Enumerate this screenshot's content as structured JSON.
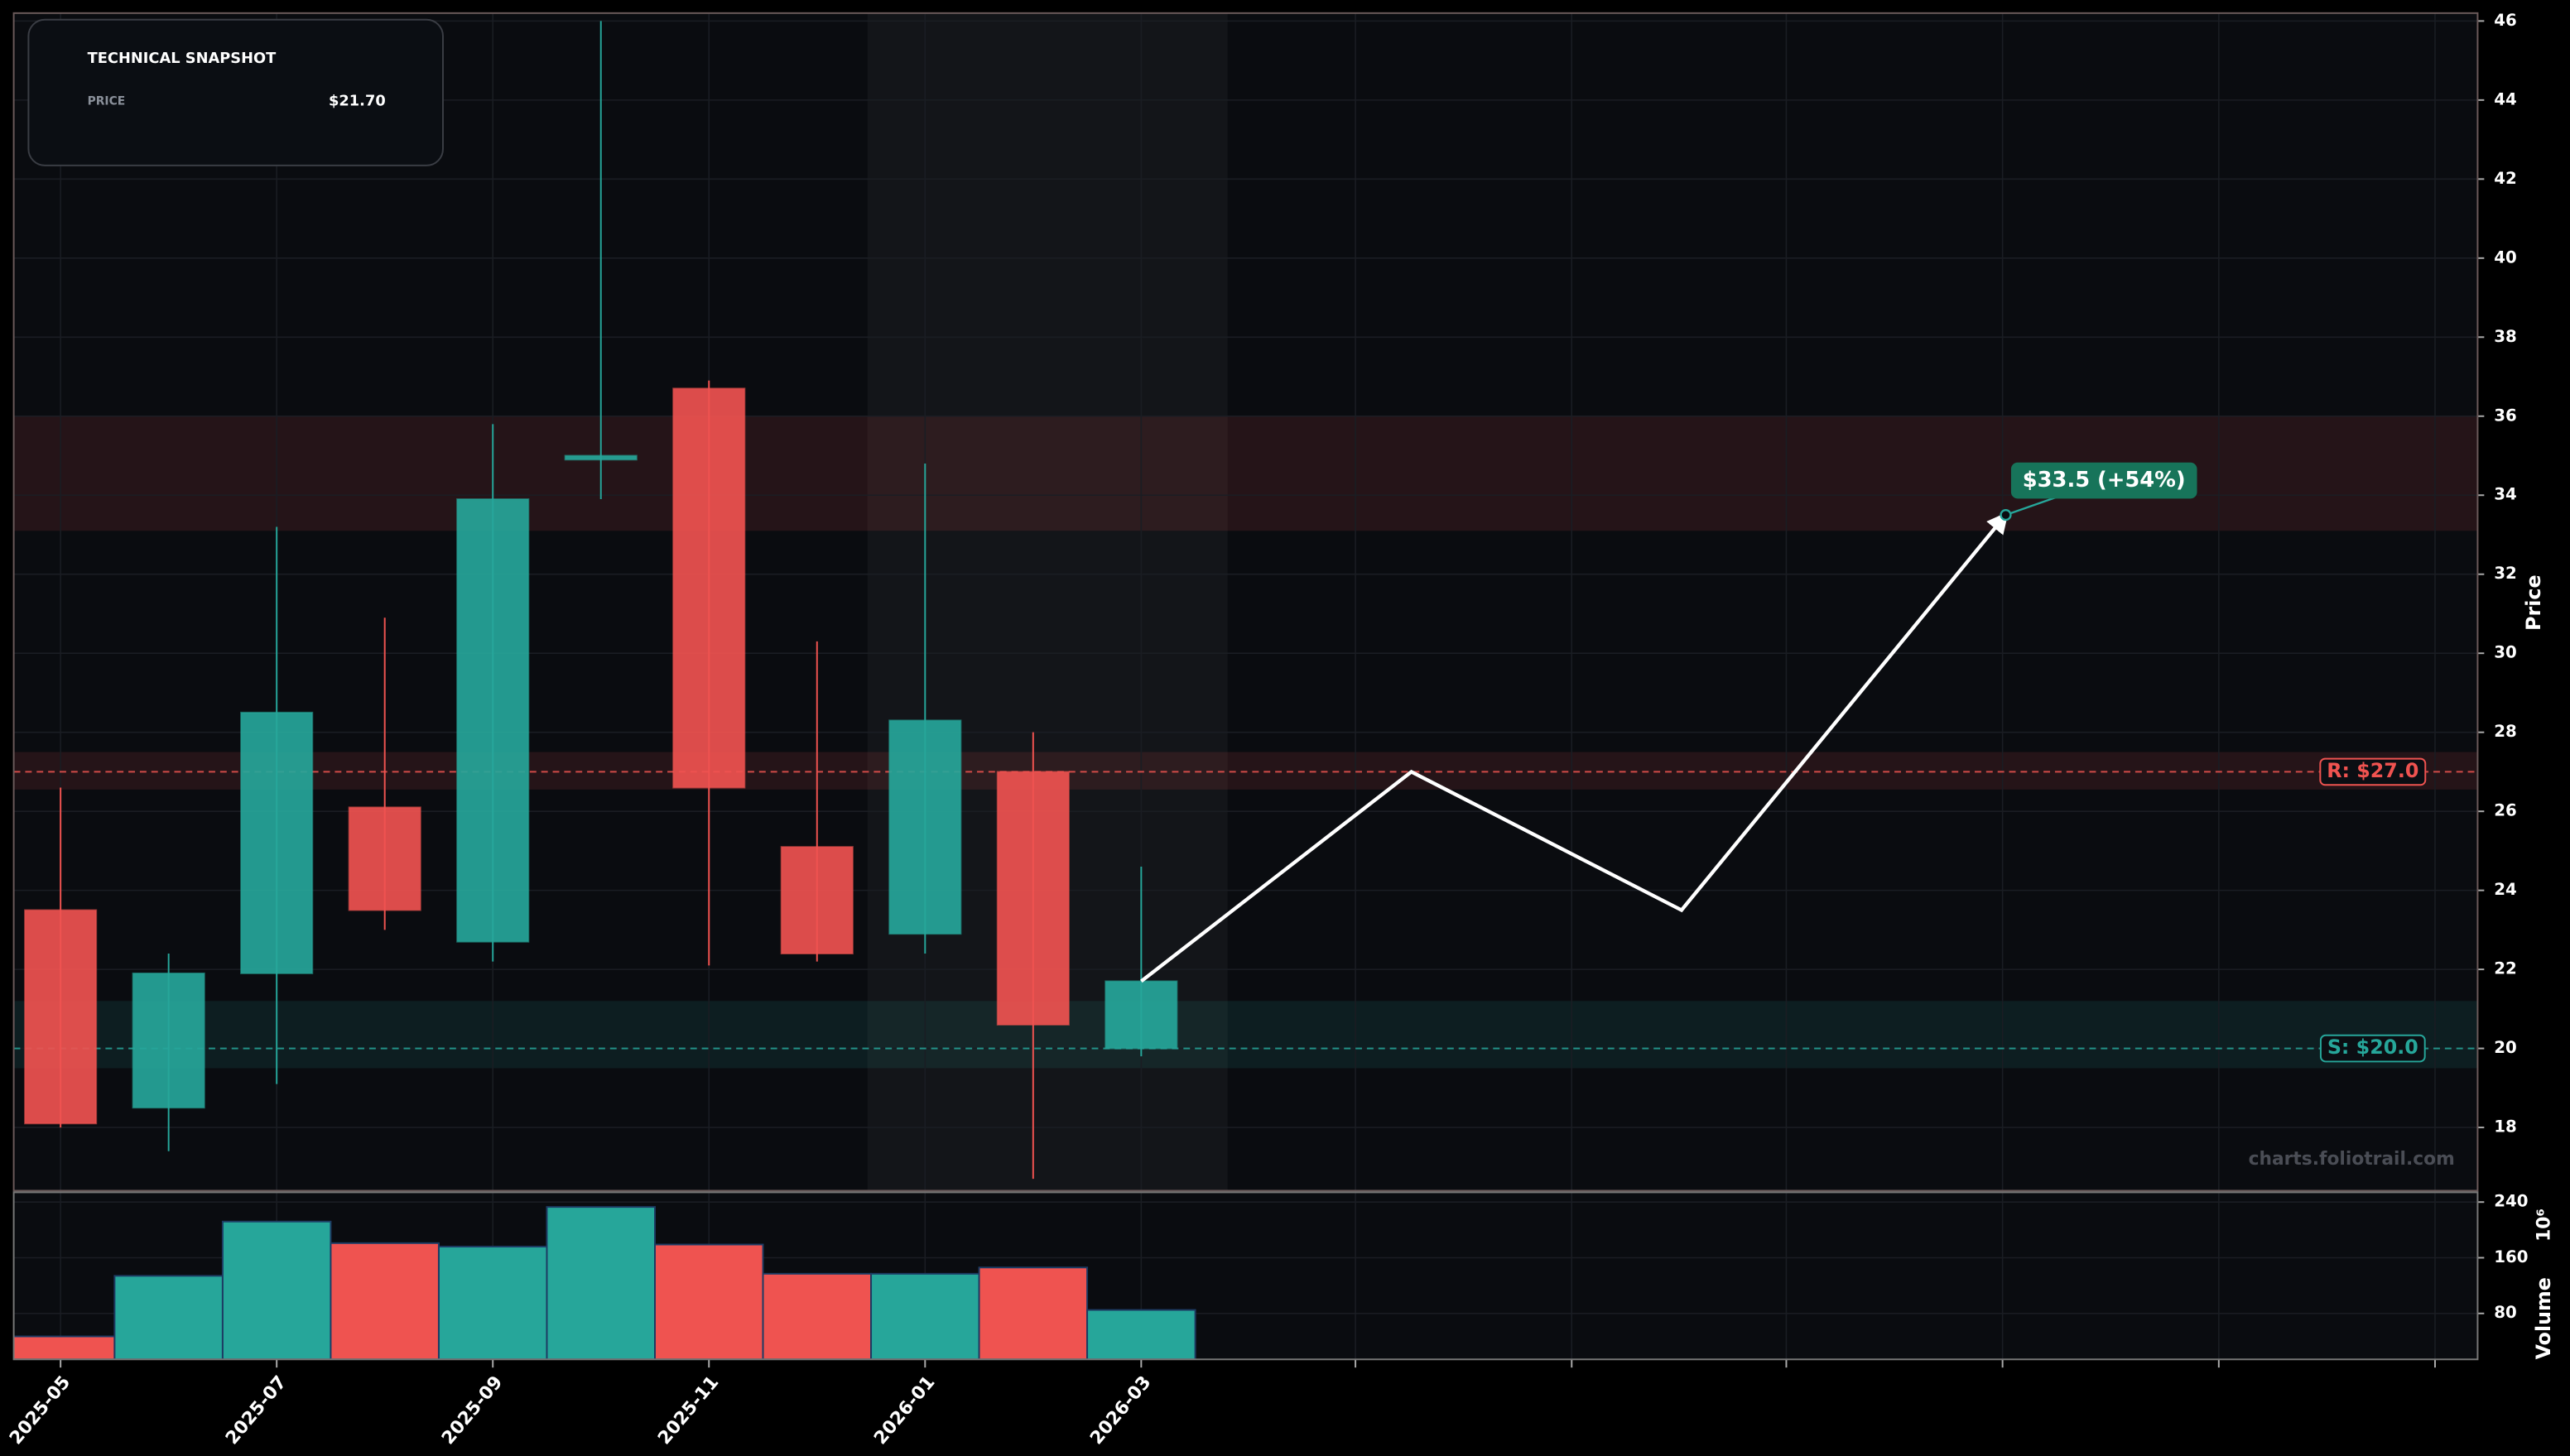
{
  "chart_data": {
    "type": "candlestick",
    "snapshot": {
      "title": "TECHNICAL SNAPSHOT",
      "label": "PRICE",
      "value": "$21.70"
    },
    "watermark": "charts.foliotrail.com",
    "y_label": "Price",
    "volume_label": "Volume",
    "volume_scale_label": "10⁶",
    "x": [
      "2025-05",
      "2025-06",
      "2025-07",
      "2025-08",
      "2025-09",
      "2025-10",
      "2025-11",
      "2025-12",
      "2026-01",
      "2026-02",
      "2026-03"
    ],
    "open": [
      23.5,
      18.5,
      21.9,
      26.1,
      22.7,
      34.9,
      36.7,
      25.1,
      22.9,
      27.0,
      20.0
    ],
    "high": [
      26.6,
      22.4,
      33.2,
      30.9,
      35.8,
      46.0,
      36.9,
      30.3,
      34.8,
      28.0,
      24.6
    ],
    "low": [
      18.0,
      17.4,
      19.1,
      23.0,
      22.2,
      33.9,
      22.1,
      22.2,
      22.4,
      16.7,
      19.8
    ],
    "close": [
      18.1,
      21.9,
      28.5,
      23.5,
      33.9,
      35.0,
      26.6,
      22.4,
      28.3,
      20.6,
      21.7
    ],
    "volume": [
      47,
      134,
      212,
      181,
      176,
      233,
      179,
      137,
      137,
      146,
      85
    ],
    "up_color": "#26a69a",
    "down_color": "#ef5350",
    "xlim": [
      "2025-04-18",
      "2027-03-12"
    ],
    "xticks": [
      "2025-05",
      "2025-07",
      "2025-09",
      "2025-11",
      "2026-01",
      "2026-03"
    ],
    "ylim": [
      16.4,
      46.2
    ],
    "yticks": [
      18,
      20,
      22,
      24,
      26,
      28,
      30,
      32,
      34,
      36,
      38,
      40,
      42,
      44,
      46
    ],
    "volume_ylim": [
      14,
      254
    ],
    "volume_yticks": [
      80,
      160,
      240
    ],
    "grid": true,
    "highlight_x": [
      "2025-12-15",
      "2026-03-25"
    ],
    "zones": [
      {
        "from": 33.1,
        "to": 36.0,
        "color": "#ef5350"
      },
      {
        "from": 26.55,
        "to": 27.5,
        "color": "#ef5350"
      },
      {
        "from": 19.5,
        "to": 21.2,
        "color": "#26a69a"
      }
    ],
    "levels": [
      {
        "label": "R: $27.0",
        "value": 27.0,
        "color": "#ef5350"
      },
      {
        "label": "S: $20.0",
        "value": 20.0,
        "color": "#26a69a"
      }
    ],
    "projection": {
      "color": "#ffffff",
      "x": [
        "2026-03",
        "2026-05-16",
        "2026-08",
        "2026-11"
      ],
      "values": [
        21.7,
        27.0,
        23.5,
        33.5
      ]
    },
    "target": {
      "text": "$33.5 (+54%)",
      "value": 33.5,
      "color": "#17745a"
    }
  }
}
